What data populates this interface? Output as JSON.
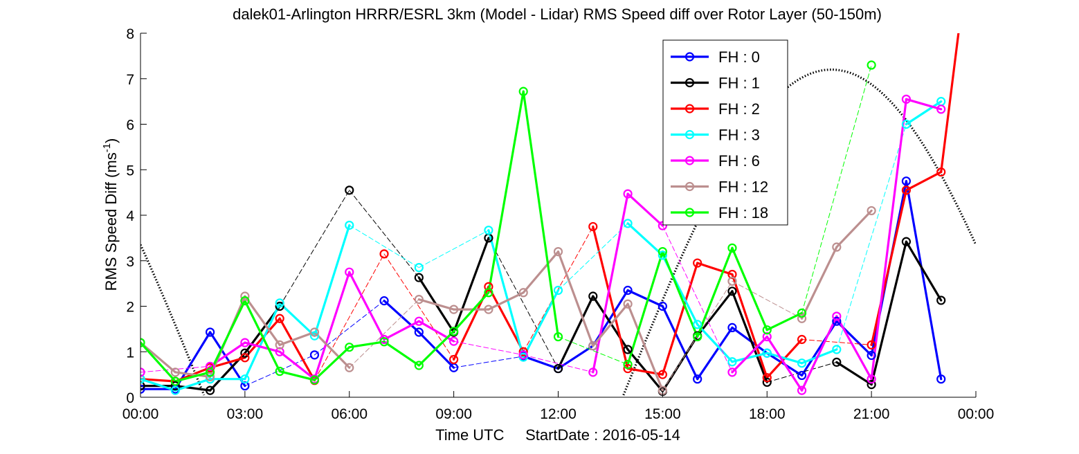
{
  "chart_data": {
    "type": "line",
    "title": "dalek01-Arlington HRRR/ESRL 3km (Model - Lidar) RMS Speed diff over Rotor Layer (50-150m)",
    "xlabel": "Time UTC     StartDate : 2016-05-14",
    "ylabel": "RMS Speed Diff (ms",
    "ylabel_sup": "-1",
    "ylabel_close": ")",
    "xlim": [
      0,
      24
    ],
    "ylim": [
      0,
      8
    ],
    "x_ticks": [
      0,
      3,
      6,
      9,
      12,
      15,
      18,
      21,
      24
    ],
    "x_tick_labels": [
      "00:00",
      "03:00",
      "06:00",
      "09:00",
      "12:00",
      "15:00",
      "18:00",
      "21:00",
      "00:00"
    ],
    "y_ticks": [
      0,
      1,
      2,
      3,
      4,
      5,
      6,
      7,
      8
    ],
    "y_tick_labels": [
      "0",
      "1",
      "2",
      "3",
      "4",
      "5",
      "6",
      "7",
      "8"
    ],
    "legend_position": "top-right",
    "grid": false,
    "series": [
      {
        "name": "FH : 0",
        "color": "#0000ff",
        "points": [
          [
            0,
            0.18
          ],
          [
            1,
            0.18
          ],
          [
            2,
            1.43
          ],
          [
            3,
            0.25
          ],
          [
            5,
            0.93
          ],
          [
            7,
            2.12
          ],
          [
            8,
            1.43
          ],
          [
            9,
            0.65
          ],
          [
            11,
            0.9
          ],
          [
            12,
            0.63
          ],
          [
            13,
            1.13
          ],
          [
            14,
            2.35
          ],
          [
            15,
            2.0
          ],
          [
            16,
            0.4
          ],
          [
            17,
            1.53
          ],
          [
            18,
            0.97
          ],
          [
            19,
            0.48
          ],
          [
            20,
            1.67
          ],
          [
            21,
            0.92
          ],
          [
            22,
            4.75
          ],
          [
            23,
            0.4
          ]
        ]
      },
      {
        "name": "FH : 1",
        "color": "#000000",
        "points": [
          [
            0,
            0.25
          ],
          [
            1,
            0.25
          ],
          [
            2,
            0.15
          ],
          [
            3,
            0.97
          ],
          [
            4,
            2.0
          ],
          [
            6,
            4.55
          ],
          [
            8,
            2.63
          ],
          [
            9,
            1.43
          ],
          [
            10,
            3.5
          ],
          [
            12,
            0.63
          ],
          [
            13,
            2.22
          ],
          [
            14,
            1.05
          ],
          [
            15,
            0.13
          ],
          [
            16,
            1.35
          ],
          [
            17,
            2.33
          ],
          [
            18,
            0.33
          ],
          [
            20,
            0.77
          ],
          [
            21,
            0.28
          ],
          [
            22,
            3.42
          ],
          [
            23,
            2.13
          ]
        ]
      },
      {
        "name": "FH : 2",
        "color": "#ff0000",
        "points": [
          [
            0,
            0.4
          ],
          [
            1,
            0.35
          ],
          [
            2,
            0.65
          ],
          [
            3,
            0.87
          ],
          [
            4,
            1.73
          ],
          [
            5,
            0.37
          ],
          [
            7,
            3.15
          ],
          [
            9,
            0.83
          ],
          [
            10,
            2.43
          ],
          [
            11,
            1.0
          ],
          [
            13,
            3.75
          ],
          [
            14,
            0.63
          ],
          [
            15,
            0.5
          ],
          [
            16,
            2.95
          ],
          [
            17,
            2.7
          ],
          [
            18,
            0.43
          ],
          [
            19,
            1.27
          ],
          [
            21,
            1.15
          ],
          [
            22,
            4.55
          ],
          [
            23,
            4.95
          ],
          [
            23.5,
            8.0
          ]
        ]
      },
      {
        "name": "FH : 3",
        "color": "#00ffff",
        "points": [
          [
            0,
            0.4
          ],
          [
            1,
            0.15
          ],
          [
            2,
            0.4
          ],
          [
            3,
            0.4
          ],
          [
            4,
            2.07
          ],
          [
            5,
            1.35
          ],
          [
            6,
            3.78
          ],
          [
            8,
            2.85
          ],
          [
            10,
            3.67
          ],
          [
            11,
            0.88
          ],
          [
            12,
            2.35
          ],
          [
            14,
            3.82
          ],
          [
            15,
            3.12
          ],
          [
            16,
            1.6
          ],
          [
            17,
            0.78
          ],
          [
            18,
            0.97
          ],
          [
            19,
            0.75
          ],
          [
            20,
            1.05
          ],
          [
            22,
            6.0
          ],
          [
            23,
            6.5
          ]
        ]
      },
      {
        "name": "FH : 6",
        "color": "#ff00ff",
        "points": [
          [
            0,
            0.55
          ],
          [
            2,
            0.68
          ],
          [
            3,
            1.2
          ],
          [
            4,
            1.0
          ],
          [
            5,
            0.4
          ],
          [
            6,
            2.75
          ],
          [
            7,
            1.27
          ],
          [
            8,
            1.67
          ],
          [
            9,
            1.23
          ],
          [
            11,
            0.93
          ],
          [
            13,
            0.55
          ],
          [
            14,
            4.47
          ],
          [
            15,
            3.77
          ],
          [
            17,
            0.55
          ],
          [
            18,
            1.33
          ],
          [
            19,
            0.15
          ],
          [
            20,
            1.78
          ],
          [
            21,
            0.4
          ],
          [
            22,
            6.55
          ],
          [
            23,
            6.33
          ]
        ]
      },
      {
        "name": "FH : 12",
        "color": "#bc8f8f",
        "points": [
          [
            0,
            1.2
          ],
          [
            1,
            0.55
          ],
          [
            2,
            0.45
          ],
          [
            3,
            2.22
          ],
          [
            4,
            1.15
          ],
          [
            5,
            1.43
          ],
          [
            6,
            0.65
          ],
          [
            8,
            2.15
          ],
          [
            9,
            1.93
          ],
          [
            10,
            1.93
          ],
          [
            11,
            2.3
          ],
          [
            12,
            3.2
          ],
          [
            13,
            1.13
          ],
          [
            14,
            2.05
          ],
          [
            15,
            0.15
          ],
          [
            17,
            2.55
          ],
          [
            19,
            1.73
          ],
          [
            20,
            3.3
          ],
          [
            21,
            4.1
          ]
        ]
      },
      {
        "name": "FH : 18",
        "color": "#00ff00",
        "points": [
          [
            0,
            1.2
          ],
          [
            1,
            0.35
          ],
          [
            2,
            0.55
          ],
          [
            3,
            2.12
          ],
          [
            4,
            0.57
          ],
          [
            5,
            0.38
          ],
          [
            6,
            1.1
          ],
          [
            7,
            1.22
          ],
          [
            8,
            0.7
          ],
          [
            9,
            1.45
          ],
          [
            10,
            2.3
          ],
          [
            11,
            6.72
          ],
          [
            12,
            1.33
          ],
          [
            14,
            0.72
          ],
          [
            15,
            3.2
          ],
          [
            16,
            1.33
          ],
          [
            17,
            3.28
          ],
          [
            18,
            1.48
          ],
          [
            19,
            1.85
          ],
          [
            21,
            7.3
          ]
        ]
      }
    ],
    "dotted_curve": {
      "color": "#000000",
      "amplitude": 7.2,
      "peak_x": 19.85,
      "period_hours": 24,
      "minimum": 0
    }
  }
}
